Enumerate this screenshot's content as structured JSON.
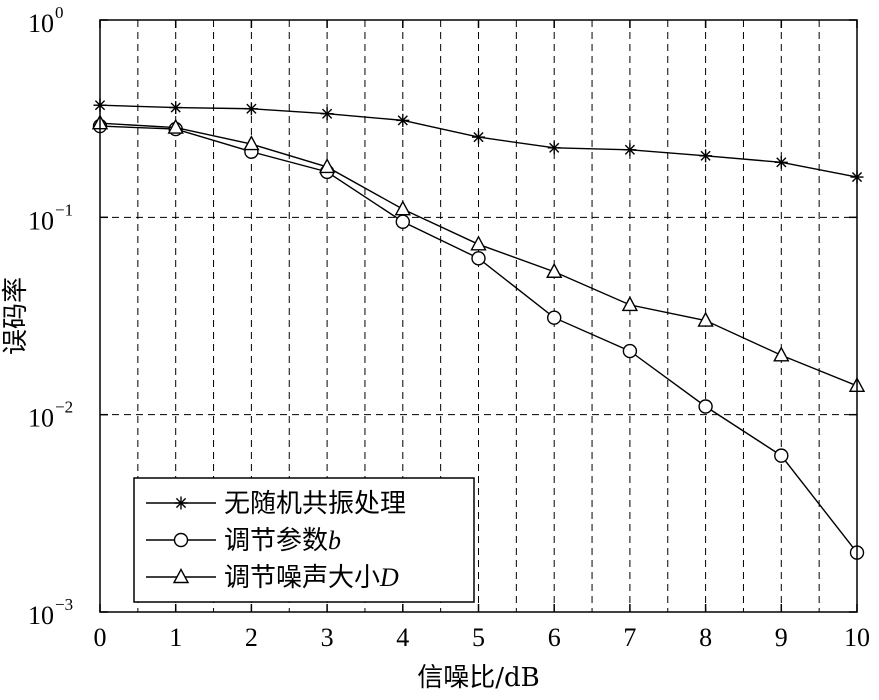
{
  "chart_data": {
    "type": "line",
    "title": "",
    "xlabel": "信噪比/dB",
    "ylabel": "误码率",
    "x": [
      0,
      1,
      2,
      3,
      4,
      5,
      6,
      7,
      8,
      9,
      10
    ],
    "xlim": [
      0,
      10
    ],
    "ylim": [
      0.001,
      1
    ],
    "yscale": "log",
    "x_ticks": [
      "0",
      "1",
      "2",
      "3",
      "4",
      "5",
      "6",
      "7",
      "8",
      "9",
      "10"
    ],
    "y_ticks": [
      {
        "base": "10",
        "exp": "0"
      },
      {
        "base": "10",
        "exp": "−1"
      },
      {
        "base": "10",
        "exp": "−2"
      },
      {
        "base": "10",
        "exp": "−3"
      }
    ],
    "grid": true,
    "legend_position": "bottom-left",
    "series": [
      {
        "name": "无随机共振处理",
        "marker": "asterisk",
        "values": [
          0.37,
          0.36,
          0.355,
          0.335,
          0.31,
          0.255,
          0.225,
          0.22,
          0.205,
          0.19,
          0.16
        ]
      },
      {
        "name": "调节参数",
        "name_suffix": "b",
        "marker": "circle",
        "values": [
          0.29,
          0.28,
          0.215,
          0.17,
          0.095,
          0.062,
          0.031,
          0.021,
          0.011,
          0.0062,
          0.002
        ]
      },
      {
        "name": "调节噪声大小",
        "name_suffix": "D",
        "marker": "triangle",
        "values": [
          0.3,
          0.285,
          0.235,
          0.18,
          0.11,
          0.073,
          0.053,
          0.036,
          0.03,
          0.02,
          0.014
        ]
      }
    ]
  }
}
